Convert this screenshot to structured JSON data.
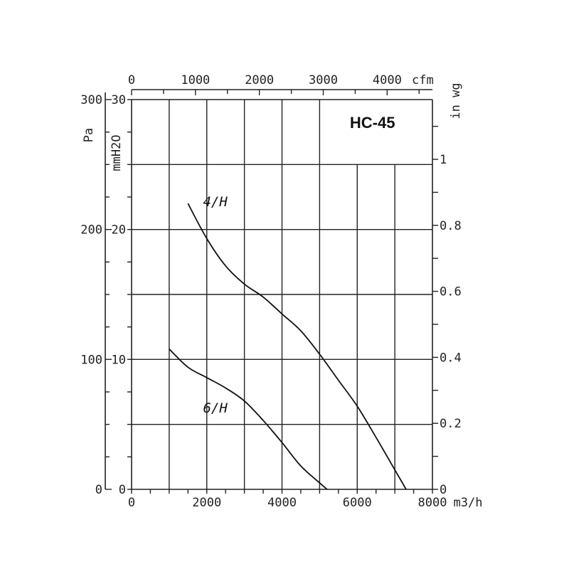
{
  "chart_data": {
    "type": "line",
    "title": "HC-45",
    "x_axis_bottom": {
      "unit": "m3/h",
      "range": [
        0,
        8000
      ],
      "ticks": [
        "0",
        "2000",
        "4000",
        "6000",
        "8000"
      ]
    },
    "x_axis_top": {
      "unit": "cfm",
      "ticks": [
        {
          "label": "0",
          "value": 0
        },
        {
          "label": "1000",
          "value": 1000
        },
        {
          "label": "2000",
          "value": 2000
        },
        {
          "label": "3000",
          "value": 3000
        },
        {
          "label": "4000",
          "value": 4000
        }
      ]
    },
    "y_axis_left_outer": {
      "unit": "Pa",
      "range": [
        0,
        300
      ],
      "ticks": [
        "0",
        "100",
        "200",
        "300"
      ]
    },
    "y_axis_left_inner": {
      "unit": "mmH2O",
      "range": [
        0,
        30
      ],
      "ticks": [
        "0",
        "10",
        "20",
        "30"
      ]
    },
    "y_axis_right": {
      "unit": "in wg",
      "ticks": [
        {
          "label": "0",
          "value": 0
        },
        {
          "label": "0.2",
          "value": 0.2
        },
        {
          "label": "0.4",
          "value": 0.4
        },
        {
          "label": "0.6",
          "value": 0.6
        },
        {
          "label": "0.8",
          "value": 0.8
        },
        {
          "label": "1",
          "value": 1
        }
      ]
    },
    "grid": true,
    "series": [
      {
        "name": "4/H",
        "x": [
          1500,
          2000,
          2500,
          3000,
          3500,
          4000,
          4500,
          5000,
          5500,
          6000,
          6500,
          7000,
          7300
        ],
        "y": [
          22,
          19.3,
          17.2,
          15.8,
          14.8,
          13.5,
          12.2,
          10.4,
          8.4,
          6.4,
          4.0,
          1.5,
          0
        ]
      },
      {
        "name": "6/H",
        "x": [
          1000,
          1500,
          2000,
          2500,
          3000,
          3500,
          4000,
          4500,
          5000,
          5200
        ],
        "y": [
          10.8,
          9.4,
          8.6,
          7.8,
          6.8,
          5.3,
          3.6,
          1.8,
          0.5,
          0
        ]
      }
    ]
  }
}
